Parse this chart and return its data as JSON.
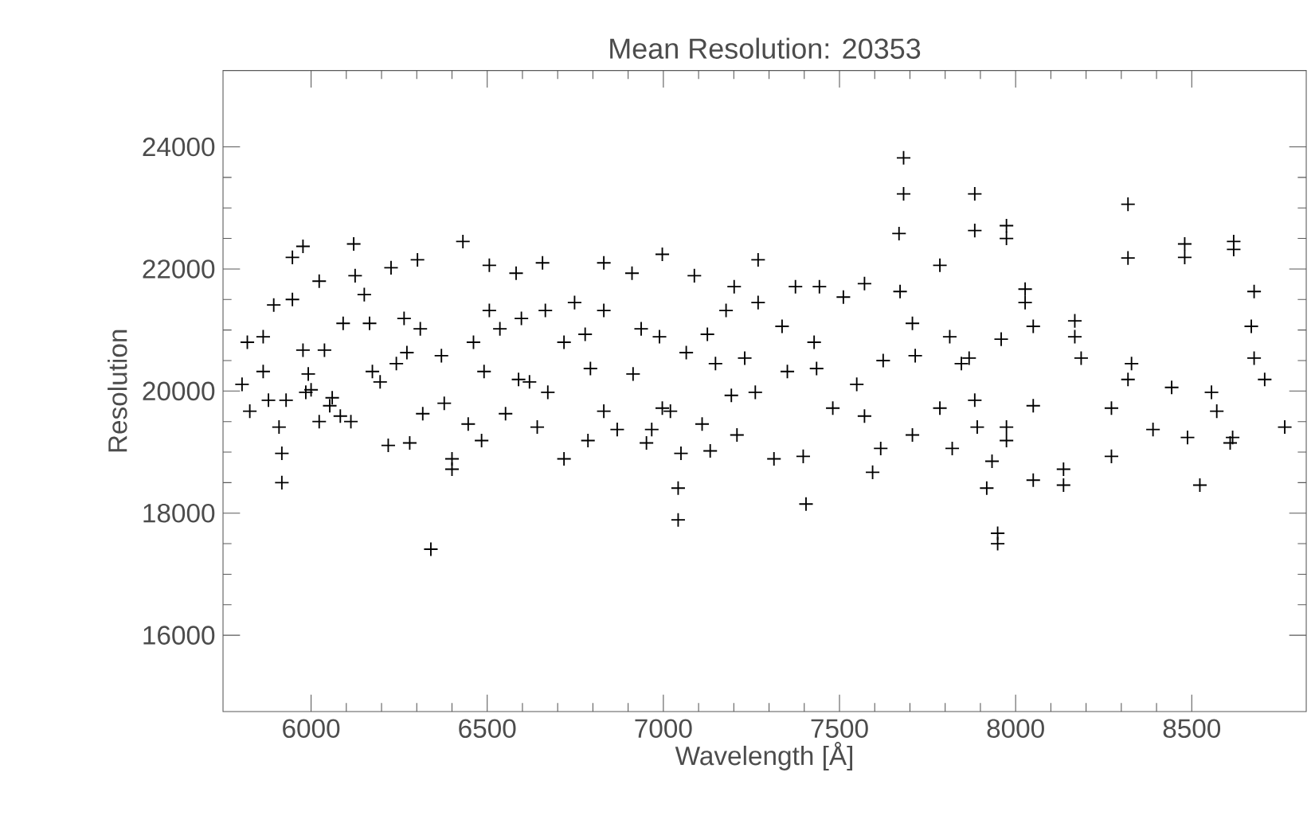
{
  "chart_data": {
    "type": "scatter",
    "title": "Mean Resolution: 20353",
    "xlabel": "Wavelength [Å]",
    "ylabel": "Resolution",
    "xlim": [
      5750,
      8825
    ],
    "ylim": [
      14750,
      25250
    ],
    "xticks": [
      6000,
      6500,
      7000,
      7500,
      8000,
      8500
    ],
    "yticks": [
      16000,
      18000,
      20000,
      22000,
      24000
    ],
    "marker": "cross",
    "grid": false,
    "series": [
      {
        "color": "#000000",
        "x": [
          5804,
          5819,
          5826,
          5864,
          5879,
          5894,
          5909,
          5917,
          5917,
          5929,
          5947,
          5947,
          5977,
          5977,
          5992,
          6000,
          6023,
          6023,
          6038,
          6053,
          6083,
          6091,
          6113,
          6121,
          6125,
          6151,
          6166,
          6174,
          6196,
          6219,
          6227,
          6242,
          6272,
          6280,
          6302,
          6310,
          6317,
          6340,
          6378,
          6400,
          6400,
          6431,
          6446,
          6461,
          6484,
          6506,
          6506,
          6536,
          6552,
          6582,
          6589,
          6620,
          6642,
          6657,
          6665,
          6672,
          6718,
          6718,
          6748,
          6786,
          5864,
          5985,
          6060,
          6264,
          6491,
          6597,
          6370,
          6778,
          6793,
          6831,
          6831,
          6831,
          6869,
          6911,
          6914,
          6937,
          6952,
          6967,
          6989,
          6997,
          6997,
          7020,
          7042,
          7042,
          7050,
          7065,
          7088,
          7110,
          7125,
          7133,
          7148,
          7178,
          7193,
          7201,
          7209,
          7231,
          7261,
          7269,
          7269,
          7314,
          7337,
          7352,
          7375,
          7397,
          7405,
          7428,
          7435,
          7443,
          7481,
          7511,
          7549,
          7571,
          7571,
          7594,
          7617,
          7624,
          7669,
          7672,
          7682,
          7682,
          7707,
          7707,
          7715,
          7785,
          7785,
          7813,
          7820,
          7846,
          7868,
          7884,
          7884,
          7884,
          7891,
          7933,
          7918,
          7949,
          7949,
          7959,
          7974,
          7974,
          7974,
          7974,
          8027,
          8027,
          8050,
          8050,
          8050,
          8136,
          8136,
          8168,
          8168,
          8186,
          8272,
          8272,
          8319,
          8319,
          8319,
          8329,
          8390,
          8443,
          8480,
          8480,
          8488,
          8523,
          8556,
          8571,
          8609,
          8616,
          8619,
          8619,
          8677,
          8669,
          8677,
          8707,
          8764
        ],
        "values": [
          20110,
          20800,
          19670,
          20890,
          19850,
          21410,
          19410,
          18980,
          18500,
          19850,
          22190,
          21500,
          22370,
          20670,
          20280,
          20020,
          21800,
          19500,
          20670,
          19760,
          19590,
          21110,
          19500,
          22410,
          21890,
          21580,
          21110,
          20320,
          20150,
          19110,
          22020,
          20450,
          20630,
          19150,
          22150,
          21020,
          19630,
          17410,
          19800,
          18890,
          18720,
          22450,
          19460,
          20800,
          19190,
          22060,
          21320,
          21020,
          19630,
          21930,
          20190,
          20150,
          19410,
          22100,
          21320,
          19980,
          20800,
          18890,
          21450,
          19190,
          20320,
          19980,
          19890,
          21190,
          20320,
          21190,
          20580,
          20930,
          20370,
          22100,
          21320,
          19670,
          19370,
          21930,
          20280,
          21020,
          19150,
          19370,
          20890,
          22240,
          19720,
          19670,
          18410,
          17890,
          18980,
          20630,
          21890,
          19460,
          20930,
          19020,
          20450,
          21320,
          19930,
          21710,
          19280,
          20540,
          19980,
          22150,
          21450,
          18890,
          21060,
          20320,
          21710,
          18930,
          18150,
          20800,
          20370,
          21710,
          19720,
          21540,
          20110,
          21760,
          19590,
          18670,
          19060,
          20500,
          22580,
          21630,
          23230,
          23820,
          21110,
          19280,
          20580,
          22060,
          19720,
          20890,
          19060,
          20450,
          20540,
          23230,
          22630,
          19850,
          19410,
          18850,
          18410,
          17670,
          17500,
          20850,
          22710,
          22500,
          19410,
          19190,
          21670,
          21450,
          21060,
          19760,
          18540,
          18720,
          18460,
          21150,
          20890,
          20540,
          19720,
          18930,
          23060,
          22180,
          20190,
          20450,
          19370,
          20060,
          22410,
          22190,
          19240,
          18460,
          19980,
          19670,
          19150,
          19240,
          22450,
          22320,
          21630,
          21060,
          20540,
          20190,
          19410
        ]
      }
    ]
  }
}
